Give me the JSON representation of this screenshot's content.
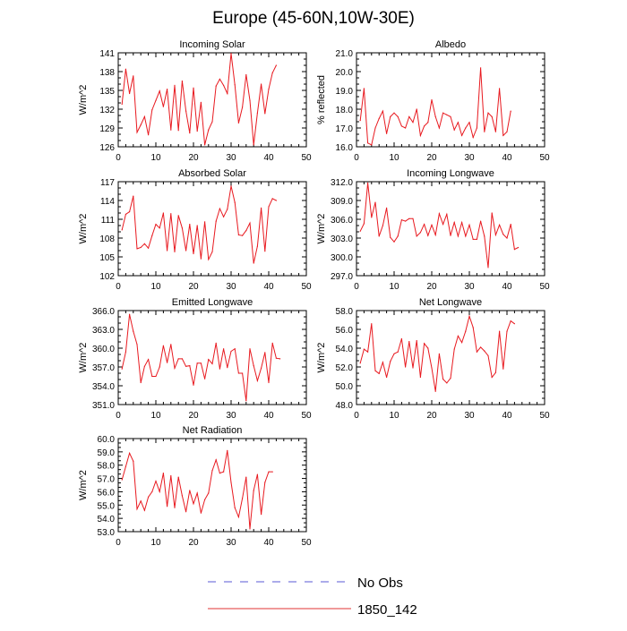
{
  "figure": {
    "title": "Europe (45-60N,10W-30E)",
    "legend": [
      {
        "label": "No Obs",
        "color": "#5a5ad6",
        "style": "dashed"
      },
      {
        "label": "1850_142",
        "color": "#e23333",
        "style": "solid"
      }
    ]
  },
  "colors": {
    "series": "#e8191f",
    "axis": "#000000",
    "obs": "#5a5ad6"
  },
  "chart_data": [
    {
      "type": "line",
      "title": "Incoming Solar",
      "ylabel": "W/m^2",
      "xlabel": "",
      "xlim": [
        0,
        50
      ],
      "ylim": [
        126,
        141
      ],
      "x_ticks": [
        0,
        10,
        20,
        30,
        40,
        50
      ],
      "y_ticks": [
        126,
        129,
        132,
        135,
        138,
        141
      ],
      "y_tick_labels": [
        "126",
        "129",
        "132",
        "135",
        "138",
        "141"
      ],
      "series": [
        {
          "name": "1850_142",
          "values": [
            132.8,
            138.4,
            134.5,
            137.3,
            128.3,
            129.5,
            130.8,
            127.9,
            131.9,
            133.4,
            134.9,
            132.4,
            135.2,
            128.7,
            135.8,
            128.6,
            136.5,
            131.7,
            128.2,
            135.4,
            128.5,
            133.1,
            126.3,
            128.7,
            130.0,
            135.7,
            136.8,
            135.8,
            134.5,
            140.9,
            135.9,
            129.8,
            132.3,
            137.5,
            133.4,
            126.3,
            131.4,
            136.0,
            131.3,
            135.2,
            137.8,
            139.0
          ]
        }
      ]
    },
    {
      "type": "line",
      "title": "Albedo",
      "ylabel": "% reflected",
      "xlabel": "",
      "xlim": [
        0,
        50
      ],
      "ylim": [
        16.0,
        21.0
      ],
      "x_ticks": [
        0,
        10,
        20,
        30,
        40,
        50
      ],
      "y_ticks": [
        16.0,
        17.0,
        18.0,
        19.0,
        20.0,
        21.0
      ],
      "y_tick_labels": [
        "16.0",
        "17.0",
        "18.0",
        "19.0",
        "20.0",
        "21.0"
      ],
      "series": [
        {
          "name": "1850_142",
          "values": [
            17.4,
            19.1,
            16.2,
            16.1,
            17.0,
            17.5,
            17.9,
            16.7,
            17.6,
            17.8,
            17.6,
            17.1,
            17.0,
            17.6,
            17.3,
            18.0,
            16.6,
            17.1,
            17.3,
            18.5,
            17.6,
            17.0,
            17.8,
            17.7,
            17.6,
            16.9,
            17.3,
            16.6,
            17.0,
            17.3,
            16.5,
            17.0,
            20.2,
            16.8,
            17.8,
            17.6,
            16.8,
            19.1,
            16.6,
            16.8,
            17.9
          ]
        }
      ]
    },
    {
      "type": "line",
      "title": "Absorbed Solar",
      "ylabel": "W/m^2",
      "xlabel": "",
      "xlim": [
        0,
        50
      ],
      "ylim": [
        102,
        117
      ],
      "x_ticks": [
        0,
        10,
        20,
        30,
        40,
        50
      ],
      "y_ticks": [
        102,
        105,
        108,
        111,
        114,
        117
      ],
      "y_tick_labels": [
        "102",
        "105",
        "108",
        "111",
        "114",
        "117"
      ],
      "series": [
        {
          "name": "1850_142",
          "values": [
            109.3,
            111.8,
            112.2,
            114.7,
            106.3,
            106.5,
            107.1,
            106.4,
            108.4,
            110.2,
            109.6,
            112.0,
            106.0,
            111.9,
            105.8,
            111.6,
            109.6,
            106.0,
            110.2,
            105.5,
            110.0,
            104.7,
            110.6,
            104.6,
            105.8,
            110.7,
            112.7,
            111.4,
            112.6,
            116.3,
            113.7,
            108.5,
            108.4,
            109.2,
            110.4,
            104.0,
            106.7,
            112.8,
            105.9,
            113.0,
            114.3,
            114.0
          ]
        }
      ]
    },
    {
      "type": "line",
      "title": "Incoming Longwave",
      "ylabel": "W/m^2",
      "xlabel": "",
      "xlim": [
        0,
        50
      ],
      "ylim": [
        297.0,
        312.0
      ],
      "x_ticks": [
        0,
        10,
        20,
        30,
        40,
        50
      ],
      "y_ticks": [
        297.0,
        300.0,
        303.0,
        306.0,
        309.0,
        312.0
      ],
      "y_tick_labels": [
        "297.0",
        "300.0",
        "303.0",
        "306.0",
        "309.0",
        "312.0"
      ],
      "series": [
        {
          "name": "1850_142",
          "values": [
            304.1,
            305.3,
            311.8,
            306.3,
            308.7,
            303.3,
            305.0,
            307.8,
            303.1,
            302.4,
            303.3,
            305.9,
            305.7,
            306.1,
            306.1,
            303.3,
            303.9,
            305.2,
            303.4,
            305.1,
            303.5,
            306.9,
            305.2,
            306.8,
            303.4,
            305.5,
            303.3,
            305.5,
            303.3,
            305.1,
            302.8,
            302.8,
            305.7,
            303.3,
            298.3,
            307.0,
            303.5,
            305.1,
            303.6,
            303.0,
            305.2,
            301.2,
            301.5
          ]
        }
      ]
    },
    {
      "type": "line",
      "title": "Emitted Longwave",
      "ylabel": "W/m^2",
      "xlabel": "",
      "xlim": [
        0,
        50
      ],
      "ylim": [
        351.0,
        366.0
      ],
      "x_ticks": [
        0,
        10,
        20,
        30,
        40,
        50
      ],
      "y_ticks": [
        351.0,
        354.0,
        357.0,
        360.0,
        363.0,
        366.0
      ],
      "y_tick_labels": [
        "351.0",
        "354.0",
        "357.0",
        "360.0",
        "363.0",
        "366.0"
      ],
      "series": [
        {
          "name": "1850_142",
          "values": [
            356.7,
            359.4,
            365.4,
            362.7,
            360.6,
            354.5,
            357.1,
            358.2,
            355.5,
            355.5,
            357.0,
            360.4,
            357.7,
            360.6,
            356.8,
            358.3,
            358.3,
            357.1,
            357.2,
            354.1,
            357.6,
            357.6,
            355.1,
            358.2,
            357.5,
            360.8,
            356.7,
            359.9,
            356.9,
            359.5,
            359.9,
            356.0,
            356.0,
            351.6,
            359.9,
            357.2,
            354.8,
            356.8,
            359.3,
            354.5,
            360.8,
            358.4,
            358.3
          ]
        }
      ]
    },
    {
      "type": "line",
      "title": "Net Longwave",
      "ylabel": "W/m^2",
      "xlabel": "",
      "xlim": [
        0,
        50
      ],
      "ylim": [
        48.0,
        58.0
      ],
      "x_ticks": [
        0,
        10,
        20,
        30,
        40,
        50
      ],
      "y_ticks": [
        48.0,
        50.0,
        52.0,
        54.0,
        56.0,
        58.0
      ],
      "y_tick_labels": [
        "48.0",
        "50.0",
        "52.0",
        "54.0",
        "56.0",
        "58.0"
      ],
      "series": [
        {
          "name": "1850_142",
          "values": [
            52.4,
            53.9,
            53.6,
            56.6,
            51.6,
            51.3,
            52.5,
            50.9,
            52.6,
            53.4,
            53.6,
            55.0,
            52.0,
            54.7,
            51.9,
            54.8,
            50.9,
            54.5,
            54.0,
            51.9,
            49.4,
            53.4,
            50.7,
            50.3,
            50.8,
            53.9,
            55.3,
            54.6,
            55.8,
            57.4,
            56.2,
            53.6,
            54.1,
            53.7,
            53.2,
            50.9,
            51.4,
            55.8,
            51.8,
            55.8,
            56.9,
            56.6
          ]
        }
      ]
    },
    {
      "type": "line",
      "title": "Net Radiation",
      "ylabel": "W/m^2",
      "xlabel": "",
      "xlim": [
        0,
        50
      ],
      "ylim": [
        53.0,
        60.0
      ],
      "x_ticks": [
        0,
        10,
        20,
        30,
        40,
        50
      ],
      "y_ticks": [
        53.0,
        54.0,
        55.0,
        56.0,
        57.0,
        58.0,
        59.0,
        60.0
      ],
      "y_tick_labels": [
        "53.0",
        "54.0",
        "55.0",
        "56.0",
        "57.0",
        "58.0",
        "59.0",
        "60.0"
      ],
      "series": [
        {
          "name": "1850_142",
          "values": [
            56.9,
            57.9,
            58.9,
            58.3,
            54.7,
            55.3,
            54.6,
            55.6,
            56.0,
            56.8,
            56.0,
            57.4,
            54.9,
            57.2,
            54.8,
            57.1,
            55.7,
            54.5,
            56.1,
            55.1,
            55.9,
            54.4,
            55.4,
            55.9,
            57.6,
            58.4,
            57.4,
            57.5,
            59.1,
            56.7,
            54.8,
            54.1,
            55.5,
            57.1,
            53.2,
            56.1,
            57.3,
            54.3,
            56.7,
            57.5,
            57.5
          ]
        }
      ]
    }
  ]
}
